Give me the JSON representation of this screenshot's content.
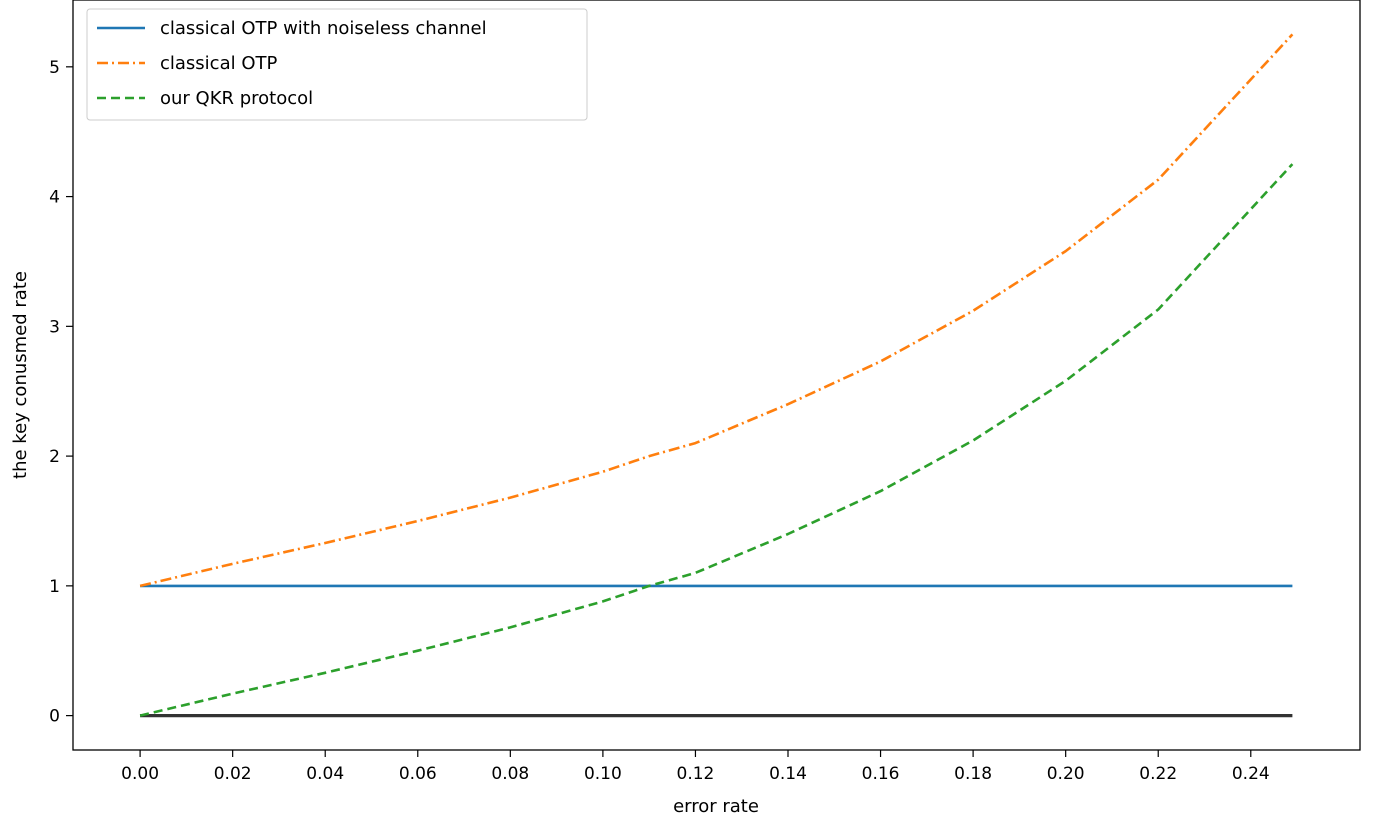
{
  "chart_data": {
    "type": "line",
    "title": "",
    "xlabel": "error rate",
    "ylabel": "the key conusmed rate",
    "xlim": [
      -0.0145,
      0.2636
    ],
    "ylim": [
      -0.265,
      5.515
    ],
    "xticks": [
      0.0,
      0.02,
      0.04,
      0.06,
      0.08,
      0.1,
      0.12,
      0.14,
      0.16,
      0.18,
      0.2,
      0.22,
      0.24
    ],
    "xtick_labels": [
      "0.00",
      "0.02",
      "0.04",
      "0.06",
      "0.08",
      "0.10",
      "0.12",
      "0.14",
      "0.16",
      "0.18",
      "0.20",
      "0.22",
      "0.24"
    ],
    "yticks": [
      0,
      1,
      2,
      3,
      4,
      5
    ],
    "ytick_labels": [
      "0",
      "1",
      "2",
      "3",
      "4",
      "5"
    ],
    "grid": false,
    "legend_position": "top-left",
    "x": [
      0.0,
      0.02,
      0.04,
      0.06,
      0.08,
      0.1,
      0.11,
      0.12,
      0.14,
      0.16,
      0.18,
      0.2,
      0.22,
      0.249
    ],
    "series": [
      {
        "name": "classical OTP with noiseless channel",
        "color": "#1f77b4",
        "style": "solid",
        "values": [
          1,
          1,
          1,
          1,
          1,
          1,
          1,
          1,
          1,
          1,
          1,
          1,
          1,
          1
        ]
      },
      {
        "name": "classical OTP",
        "color": "#ff7f0e",
        "style": "dashdot",
        "values": [
          1.0,
          1.17,
          1.33,
          1.5,
          1.68,
          1.88,
          2.0,
          2.1,
          2.4,
          2.73,
          3.12,
          3.58,
          4.13,
          5.25
        ]
      },
      {
        "name": "our QKR protocol",
        "color": "#2ca02c",
        "style": "dashed",
        "values": [
          0.0,
          0.17,
          0.33,
          0.5,
          0.68,
          0.88,
          1.0,
          1.1,
          1.4,
          1.73,
          2.12,
          2.58,
          3.13,
          4.25
        ]
      },
      {
        "color": "#333333",
        "style": "solid",
        "values": [
          0,
          0,
          0,
          0,
          0,
          0,
          0,
          0,
          0,
          0,
          0,
          0,
          0,
          0
        ]
      }
    ]
  }
}
